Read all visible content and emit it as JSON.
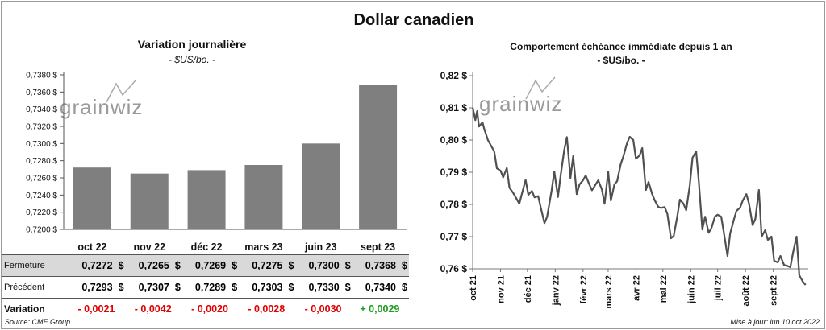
{
  "title": "Dollar canadien",
  "source": "Source: CME Group",
  "updated": "Mise à jour: lun 10 oct 2022",
  "watermark": "grainwiz",
  "table": {
    "rows": [
      {
        "label": "Fermeture",
        "values": [
          "0,7272",
          "0,7265",
          "0,7269",
          "0,7275",
          "0,7300",
          "0,7368"
        ],
        "unit": "$"
      },
      {
        "label": "Précédent",
        "values": [
          "0,7293",
          "0,7307",
          "0,7289",
          "0,7303",
          "0,7330",
          "0,7340"
        ],
        "unit": "$"
      },
      {
        "label": "Variation",
        "values": [
          "- 0,0021",
          "- 0,0042",
          "- 0,0020",
          "- 0,0028",
          "- 0,0030",
          "+ 0,0029"
        ]
      }
    ]
  },
  "chart_data": [
    {
      "type": "bar",
      "title": "Variation  journalière",
      "subtitle": "- $US/bo. -",
      "categories": [
        "oct 22",
        "nov 22",
        "déc 22",
        "mars 23",
        "juin 23",
        "sept 23"
      ],
      "values": [
        0.7272,
        0.7265,
        0.7269,
        0.7275,
        0.73,
        0.7368
      ],
      "ylim": [
        0.72,
        0.738
      ],
      "yticks": [
        "0,7200 $",
        "0,7220 $",
        "0,7240 $",
        "0,7260 $",
        "0,7280 $",
        "0,7300 $",
        "0,7320 $",
        "0,7340 $",
        "0,7360 $",
        "0,7380 $"
      ],
      "color": "#7f7f7f",
      "grid": false
    },
    {
      "type": "line",
      "title": "Comportement échéance immédiate depuis 1 an",
      "subtitle": "- $US/bo. -",
      "ylim": [
        0.76,
        0.82
      ],
      "yticks": [
        "0,76 $",
        "0,77 $",
        "0,78 $",
        "0,79 $",
        "0,80 $",
        "0,81 $",
        "0,82 $"
      ],
      "xticks": [
        "oct 21",
        "nov 21",
        "déc 21",
        "janv 22",
        "févr 22",
        "mars 22",
        "avr 22",
        "mai 22",
        "juin 22",
        "juil 22",
        "août 22",
        "sept 22"
      ],
      "color": "#505050",
      "grid": false,
      "x": [
        "2021-10-01",
        "2021-10-04",
        "2021-10-06",
        "2021-10-08",
        "2021-10-12",
        "2021-10-14",
        "2021-10-18",
        "2021-10-21",
        "2021-10-25",
        "2021-10-28",
        "2021-11-01",
        "2021-11-04",
        "2021-11-08",
        "2021-11-11",
        "2021-11-15",
        "2021-11-18",
        "2021-11-22",
        "2021-11-25",
        "2021-11-29",
        "2021-12-02",
        "2021-12-06",
        "2021-12-09",
        "2021-12-13",
        "2021-12-16",
        "2021-12-20",
        "2021-12-23",
        "2021-12-28",
        "2021-12-31",
        "2022-01-04",
        "2022-01-07",
        "2022-01-11",
        "2022-01-14",
        "2022-01-18",
        "2022-01-21",
        "2022-01-25",
        "2022-01-28",
        "2022-02-01",
        "2022-02-04",
        "2022-02-08",
        "2022-02-11",
        "2022-02-15",
        "2022-02-18",
        "2022-02-22",
        "2022-02-25",
        "2022-03-01",
        "2022-03-04",
        "2022-03-08",
        "2022-03-11",
        "2022-03-15",
        "2022-03-18",
        "2022-03-22",
        "2022-03-25",
        "2022-03-29",
        "2022-04-01",
        "2022-04-05",
        "2022-04-08",
        "2022-04-12",
        "2022-04-15",
        "2022-04-19",
        "2022-04-22",
        "2022-04-26",
        "2022-04-29",
        "2022-05-03",
        "2022-05-06",
        "2022-05-10",
        "2022-05-13",
        "2022-05-17",
        "2022-05-20",
        "2022-05-24",
        "2022-05-27",
        "2022-05-31",
        "2022-06-03",
        "2022-06-07",
        "2022-06-10",
        "2022-06-14",
        "2022-06-17",
        "2022-06-21",
        "2022-06-24",
        "2022-06-28",
        "2022-07-01",
        "2022-07-05",
        "2022-07-08",
        "2022-07-12",
        "2022-07-15",
        "2022-07-19",
        "2022-07-22",
        "2022-07-26",
        "2022-07-29",
        "2022-08-02",
        "2022-08-05",
        "2022-08-09",
        "2022-08-12",
        "2022-08-16",
        "2022-08-19",
        "2022-08-23",
        "2022-08-26",
        "2022-08-30",
        "2022-09-02",
        "2022-09-06",
        "2022-09-09",
        "2022-09-13",
        "2022-09-16",
        "2022-09-20",
        "2022-09-23",
        "2022-09-27",
        "2022-09-30",
        "2022-10-04",
        "2022-10-07"
      ],
      "y": [
        0.8101,
        0.8062,
        0.809,
        0.8042,
        0.8055,
        0.8033,
        0.8,
        0.7985,
        0.7965,
        0.7912,
        0.7905,
        0.7884,
        0.7913,
        0.7852,
        0.7836,
        0.7822,
        0.7802,
        0.7835,
        0.7876,
        0.783,
        0.7842,
        0.7822,
        0.7826,
        0.7789,
        0.7742,
        0.7762,
        0.7844,
        0.7902,
        0.7823,
        0.7889,
        0.7969,
        0.8009,
        0.7882,
        0.795,
        0.7832,
        0.7862,
        0.7875,
        0.789,
        0.7862,
        0.7844,
        0.7862,
        0.7875,
        0.7846,
        0.7802,
        0.7902,
        0.7812,
        0.7862,
        0.7872,
        0.7925,
        0.795,
        0.799,
        0.801,
        0.8,
        0.7942,
        0.7952,
        0.7975,
        0.7845,
        0.787,
        0.7832,
        0.7812,
        0.7792,
        0.7789,
        0.7792,
        0.777,
        0.7695,
        0.7702,
        0.7762,
        0.7815,
        0.7802,
        0.7782,
        0.786,
        0.7945,
        0.7965,
        0.7872,
        0.7722,
        0.7762,
        0.7712,
        0.7726,
        0.7762,
        0.7768,
        0.7762,
        0.7712,
        0.764,
        0.771,
        0.7752,
        0.778,
        0.779,
        0.7812,
        0.7832,
        0.7802,
        0.7736,
        0.7755,
        0.7845,
        0.77,
        0.772,
        0.769,
        0.77,
        0.7625,
        0.762,
        0.764,
        0.7612,
        0.761,
        0.7605,
        0.765,
        0.77,
        0.758,
        0.756,
        0.755
      ]
    }
  ]
}
